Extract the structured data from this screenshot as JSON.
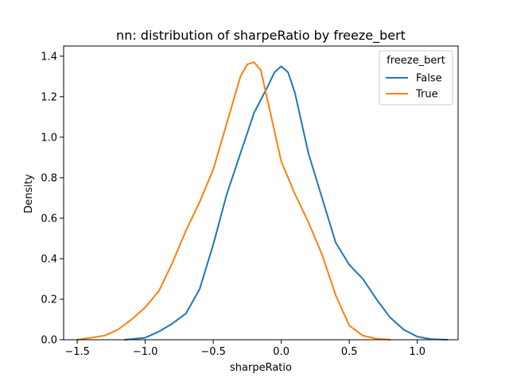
{
  "chart_data": {
    "type": "line",
    "title": "nn: distribution of sharpeRatio by freeze_bert",
    "xlabel": "sharpeRatio",
    "ylabel": "Density",
    "xlim": [
      -1.6,
      1.3
    ],
    "ylim": [
      0,
      1.45
    ],
    "xticks": [
      -1.5,
      -1.0,
      -0.5,
      0.0,
      0.5,
      1.0
    ],
    "xtick_labels": [
      "−1.5",
      "−1.0",
      "−0.5",
      "0.0",
      "0.5",
      "1.0"
    ],
    "yticks": [
      0.0,
      0.2,
      0.4,
      0.6,
      0.8,
      1.0,
      1.2,
      1.4
    ],
    "ytick_labels": [
      "0.0",
      "0.2",
      "0.4",
      "0.6",
      "0.8",
      "1.0",
      "1.2",
      "1.4"
    ],
    "grid": false,
    "legend": {
      "title": "freeze_bert",
      "placement": "top-right"
    },
    "series": [
      {
        "name": "False",
        "color": "#1f77b4",
        "x": [
          -1.15,
          -1.0,
          -0.9,
          -0.8,
          -0.7,
          -0.6,
          -0.5,
          -0.4,
          -0.3,
          -0.2,
          -0.1,
          -0.05,
          0.0,
          0.05,
          0.1,
          0.2,
          0.3,
          0.4,
          0.5,
          0.6,
          0.7,
          0.8,
          0.9,
          1.0,
          1.1,
          1.22
        ],
        "y": [
          0.0,
          0.01,
          0.04,
          0.08,
          0.13,
          0.25,
          0.47,
          0.72,
          0.92,
          1.12,
          1.25,
          1.32,
          1.35,
          1.32,
          1.22,
          0.92,
          0.7,
          0.48,
          0.37,
          0.3,
          0.2,
          0.11,
          0.05,
          0.015,
          0.003,
          0.0
        ]
      },
      {
        "name": "True",
        "color": "#ff7f0e",
        "x": [
          -1.5,
          -1.4,
          -1.3,
          -1.2,
          -1.1,
          -1.0,
          -0.9,
          -0.8,
          -0.7,
          -0.6,
          -0.5,
          -0.4,
          -0.3,
          -0.25,
          -0.2,
          -0.15,
          -0.1,
          -0.05,
          0.0,
          0.1,
          0.2,
          0.3,
          0.4,
          0.5,
          0.6,
          0.7,
          0.8
        ],
        "y": [
          0.0,
          0.01,
          0.02,
          0.05,
          0.1,
          0.16,
          0.24,
          0.38,
          0.54,
          0.68,
          0.84,
          1.07,
          1.3,
          1.36,
          1.37,
          1.33,
          1.18,
          1.03,
          0.88,
          0.72,
          0.58,
          0.42,
          0.22,
          0.07,
          0.02,
          0.005,
          0.0
        ]
      }
    ]
  }
}
